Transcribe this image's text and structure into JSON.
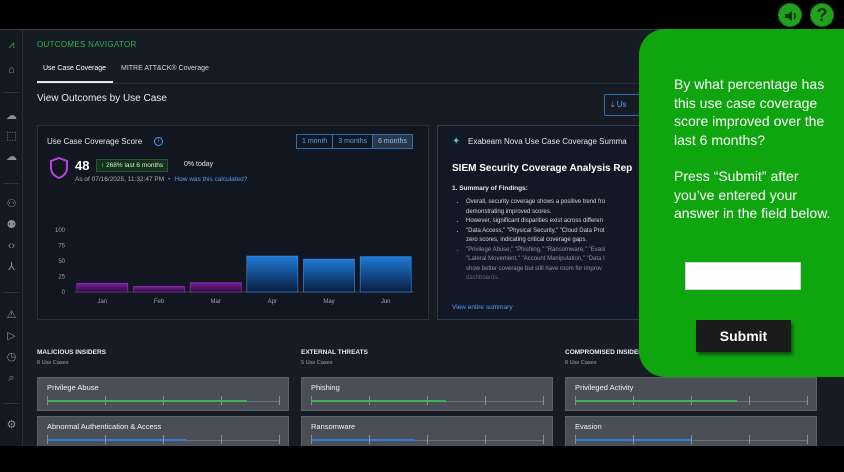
{
  "colors": {
    "accent_green": "#22a11c",
    "brand_blue": "#4ea0f0",
    "bar_purple": "#7a1f9c",
    "bar_blue": "#1e7ad6",
    "overlay_green": "#0fa50f"
  },
  "topbar": {
    "audio_icon": "speaker-icon",
    "help_label": "?"
  },
  "rail": {
    "icons": [
      "logo-icon",
      "home-icon",
      "cloud-upload-icon",
      "box-icon",
      "cloud-sync-icon",
      "users-icon",
      "user-group-icon",
      "code-icon",
      "network-icon",
      "warning-icon",
      "play-icon",
      "history-icon",
      "search-icon",
      "settings-icon"
    ]
  },
  "nav": {
    "title": "OUTCOMES NAVIGATOR",
    "tabs": [
      {
        "label": "Use Case Coverage"
      },
      {
        "label": "MITRE ATT&CK® Coverage"
      }
    ]
  },
  "view": {
    "title": "View Outcomes by Use Case",
    "export_label": "Us"
  },
  "score_card": {
    "title": "Use Case Coverage Score",
    "ranges": [
      "1 month",
      "3 months",
      "6 months"
    ],
    "active_range": "6 months",
    "score": "48",
    "delta": "↑ 268% last 6 months",
    "today": "0% today",
    "as_of": "As of 07/16/2025, 11:32:47 PM",
    "how_link": "How was this calculated?"
  },
  "chart_data": {
    "type": "bar",
    "categories": [
      "Jan",
      "Feb",
      "Mar",
      "Apr",
      "May",
      "Jun"
    ],
    "values": [
      14,
      9,
      15,
      58,
      53,
      57
    ],
    "series_colors": [
      "purple",
      "purple",
      "purple",
      "blue",
      "blue",
      "blue"
    ],
    "yticks": [
      0,
      25,
      50,
      75,
      100
    ],
    "ylim": [
      0,
      100
    ],
    "grid": false
  },
  "summary": {
    "title": "Exabeam Nova Use Case Coverage Summa",
    "heading": "SIEM Security Coverage Analysis Rep",
    "subheading": "1. Summary of Findings:",
    "bullets": [
      "Overall, security coverage shows a positive trend fro",
      "demonstrating improved scores.",
      "However, significant disparities exist across differen",
      "\"Data Access,\" \"Physical Security,\" \"Cloud Data Prot",
      "zero scores, indicating critical coverage gaps.",
      "\"Privilege Abuse,\" \"Phishing,\" \"Ransomware,\" \"Evasi",
      "\"Lateral Movement,\" \"Account Manipulation,\" \"Data I",
      "show better coverage but still have room for improv",
      "dashboards."
    ],
    "link": "View entire summary"
  },
  "categories": [
    {
      "title": "MALICIOUS INSIDERS",
      "count": "8 Use Cases",
      "cards": [
        {
          "name": "Privilege Abuse",
          "progress": 0.86,
          "color": "#3fb24b"
        },
        {
          "name": "Abnormal Authentication & Access",
          "progress": 0.6,
          "color": "#2f7fd6"
        }
      ]
    },
    {
      "title": "EXTERNAL THREATS",
      "count": "5 Use Cases",
      "cards": [
        {
          "name": "Phishing",
          "progress": 0.58,
          "color": "#3fb24b"
        },
        {
          "name": "Ransomware",
          "progress": 0.45,
          "color": "#2f7fd6"
        }
      ]
    },
    {
      "title": "COMPROMISED INSIDER",
      "count": "8 Use Cases",
      "cards": [
        {
          "name": "Privileged Activity",
          "progress": 0.7,
          "color": "#3fb24b"
        },
        {
          "name": "Evasion",
          "progress": 0.5,
          "color": "#2f7fd6"
        }
      ]
    }
  ],
  "overlay": {
    "question": "By what percentage has this use case coverage score improved over the last 6 months?",
    "instruction": "Press “Submit” after you’ve entered your answer in the field below.",
    "answer_value": "",
    "submit_label": "Submit"
  }
}
